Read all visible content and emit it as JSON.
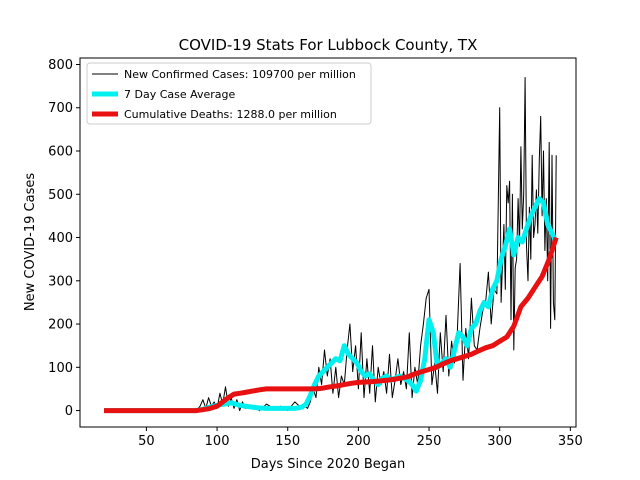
{
  "chart_data": {
    "type": "line",
    "title": "COVID-19 Stats For Lubbock County, TX",
    "xlabel": "Days Since 2020 Began",
    "ylabel": "New COVID-19 Cases",
    "xlim": [
      3,
      354
    ],
    "ylim": [
      -38,
      815
    ],
    "xticks": [
      50,
      100,
      150,
      200,
      250,
      300,
      350
    ],
    "yticks": [
      0,
      100,
      200,
      300,
      400,
      500,
      600,
      700,
      800
    ],
    "legend_position": "top-left",
    "grid": false,
    "series": [
      {
        "name": "New Confirmed Cases: 109700 per million",
        "color": "#000000",
        "width": 1,
        "x": [
          20,
          85,
          88,
          90,
          92,
          94,
          96,
          98,
          100,
          102,
          104,
          106,
          108,
          110,
          112,
          114,
          116,
          118,
          120,
          125,
          130,
          135,
          140,
          145,
          150,
          155,
          160,
          162,
          164,
          166,
          168,
          170,
          172,
          174,
          176,
          178,
          180,
          182,
          184,
          186,
          188,
          190,
          192,
          194,
          196,
          198,
          200,
          202,
          204,
          206,
          208,
          210,
          212,
          214,
          216,
          218,
          220,
          222,
          224,
          226,
          228,
          230,
          232,
          234,
          236,
          238,
          240,
          242,
          244,
          246,
          248,
          250,
          252,
          254,
          256,
          258,
          260,
          262,
          264,
          266,
          268,
          270,
          272,
          274,
          276,
          278,
          280,
          282,
          284,
          286,
          288,
          290,
          292,
          294,
          296,
          298,
          300,
          301,
          302,
          303,
          304,
          305,
          306,
          307,
          308,
          309,
          310,
          311,
          312,
          313,
          314,
          315,
          316,
          317,
          318,
          319,
          320,
          321,
          322,
          323,
          324,
          325,
          326,
          327,
          328,
          329,
          330,
          331,
          332,
          333,
          334,
          335,
          336,
          337,
          338,
          339,
          340
        ],
        "y": [
          0,
          0,
          10,
          25,
          5,
          30,
          10,
          20,
          5,
          40,
          15,
          55,
          10,
          30,
          5,
          25,
          0,
          20,
          5,
          10,
          0,
          15,
          5,
          10,
          0,
          20,
          5,
          10,
          5,
          20,
          50,
          30,
          100,
          60,
          140,
          80,
          120,
          40,
          100,
          30,
          80,
          60,
          140,
          200,
          90,
          150,
          50,
          180,
          30,
          120,
          40,
          150,
          20,
          100,
          60,
          90,
          40,
          130,
          30,
          70,
          120,
          60,
          90,
          50,
          180,
          30,
          100,
          60,
          150,
          200,
          260,
          280,
          60,
          110,
          40,
          180,
          90,
          220,
          80,
          160,
          110,
          180,
          340,
          70,
          190,
          120,
          260,
          150,
          140,
          190,
          230,
          250,
          320,
          200,
          280,
          270,
          700,
          250,
          340,
          430,
          280,
          520,
          480,
          530,
          210,
          500,
          140,
          330,
          350,
          490,
          380,
          610,
          420,
          500,
          770,
          380,
          300,
          470,
          350,
          590,
          400,
          430,
          510,
          410,
          580,
          680,
          450,
          600,
          370,
          490,
          300,
          620,
          190,
          590,
          250,
          210,
          590
        ]
      },
      {
        "name": "7 Day Case Average",
        "color": "#00f0f0",
        "width": 5,
        "x": [
          20,
          85,
          90,
          95,
          100,
          105,
          110,
          115,
          120,
          125,
          130,
          135,
          140,
          145,
          150,
          155,
          160,
          163,
          166,
          169,
          172,
          175,
          178,
          181,
          184,
          187,
          190,
          193,
          196,
          199,
          202,
          205,
          208,
          211,
          214,
          217,
          220,
          223,
          226,
          229,
          232,
          235,
          238,
          241,
          244,
          247,
          250,
          253,
          256,
          259,
          262,
          265,
          268,
          271,
          274,
          277,
          280,
          283,
          286,
          289,
          292,
          295,
          298,
          301,
          304,
          307,
          310,
          313,
          316,
          319,
          322,
          325,
          328,
          331,
          334,
          337,
          340
        ],
        "y": [
          0,
          0,
          3,
          8,
          12,
          15,
          18,
          13,
          10,
          8,
          6,
          5,
          5,
          5,
          5,
          5,
          8,
          15,
          35,
          60,
          80,
          90,
          100,
          110,
          120,
          115,
          150,
          130,
          120,
          110,
          90,
          80,
          85,
          70,
          60,
          75,
          80,
          70,
          75,
          80,
          75,
          70,
          60,
          45,
          70,
          120,
          210,
          180,
          100,
          110,
          120,
          100,
          140,
          180,
          170,
          150,
          190,
          200,
          230,
          250,
          240,
          280,
          300,
          350,
          380,
          420,
          360,
          400,
          390,
          420,
          450,
          470,
          490,
          480,
          430,
          410,
          390
        ]
      },
      {
        "name": "Cumulative Deaths: 1288.0 per million",
        "color": "#e81010",
        "width": 5,
        "x": [
          20,
          85,
          90,
          95,
          100,
          104,
          108,
          112,
          116,
          120,
          125,
          130,
          135,
          140,
          150,
          160,
          170,
          175,
          180,
          185,
          190,
          195,
          200,
          210,
          220,
          225,
          230,
          235,
          240,
          245,
          250,
          255,
          260,
          265,
          270,
          275,
          280,
          285,
          290,
          295,
          300,
          305,
          310,
          315,
          320,
          325,
          330,
          335,
          340
        ],
        "y": [
          0,
          0,
          2,
          5,
          10,
          20,
          30,
          38,
          40,
          42,
          45,
          48,
          50,
          50,
          50,
          50,
          50,
          52,
          55,
          57,
          60,
          63,
          65,
          67,
          70,
          72,
          75,
          78,
          85,
          90,
          95,
          100,
          108,
          115,
          120,
          125,
          130,
          138,
          145,
          150,
          160,
          170,
          195,
          240,
          260,
          285,
          310,
          350,
          400
        ]
      }
    ]
  }
}
